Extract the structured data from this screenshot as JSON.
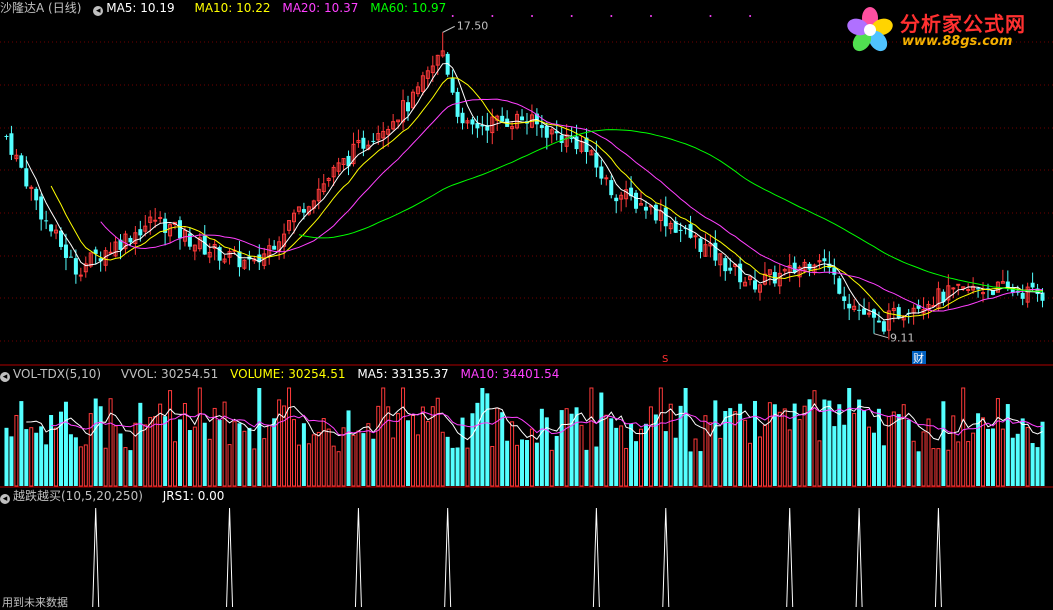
{
  "price_panel": {
    "legend": {
      "title": "沙隆达A (日线)",
      "ma5": "MA5: 10.19",
      "ma10": "MA10: 10.22",
      "ma20": "MA20: 10.37",
      "ma60": "MA60: 10.97"
    },
    "high_label": "17.50",
    "low_label": "9.11",
    "marker_s": "S",
    "marker_cai": "财",
    "colors": {
      "up": "#ff3a3a",
      "down": "#54ffff",
      "ma5": "#ffffff",
      "ma10": "#ffff00",
      "ma20": "#ff40ff",
      "ma60": "#00ff00"
    }
  },
  "volume_panel": {
    "legend": {
      "title": "VOL-TDX(5,10)",
      "vvol": "VVOL: 30254.51",
      "volume": "VOLUME: 30254.51",
      "ma5": "MA5: 33135.37",
      "ma10": "MA10: 34401.54"
    }
  },
  "indicator_panel": {
    "legend": {
      "title": "越跌越买(10,5,20,250)",
      "jrs1": "JRS1: 0.00"
    },
    "footer": "用到未来数据"
  },
  "logo": {
    "line1": "分析家公式网",
    "line2": "www.88gs.com",
    "icon": "flower-logo-icon"
  }
}
